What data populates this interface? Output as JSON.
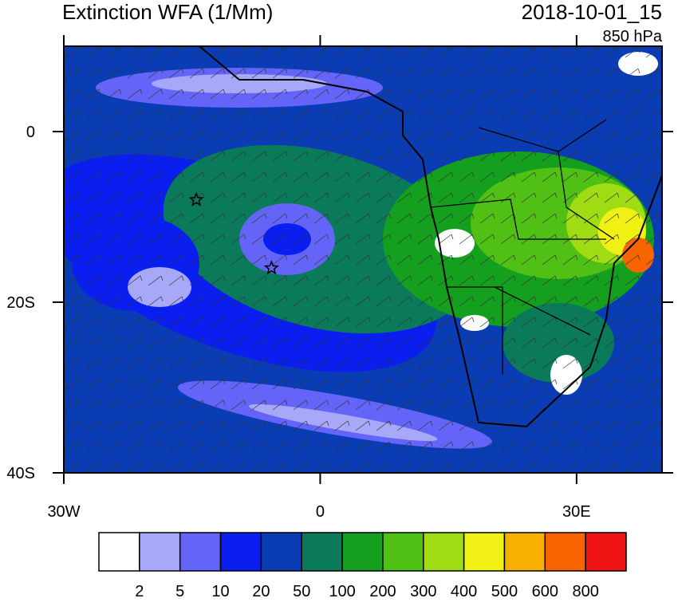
{
  "header": {
    "title": "Extinction WFA (1/Mm)",
    "datetime": "2018-10-01_15",
    "level": "850 hPa"
  },
  "map": {
    "xlim": [
      -30,
      40
    ],
    "ylim": [
      -40,
      10
    ],
    "xticks": [
      {
        "value": -30,
        "label": "30W"
      },
      0,
      {
        "value": 30,
        "label": "30E"
      }
    ],
    "yticks": [
      0,
      {
        "value": -20,
        "label": "20S"
      },
      {
        "value": -40,
        "label": "40S"
      }
    ],
    "markers": [
      {
        "lon": -14.5,
        "lat": -8
      },
      {
        "lon": -5.7,
        "lat": -16
      }
    ]
  },
  "colorbar": {
    "levels": [
      2,
      5,
      10,
      20,
      50,
      100,
      200,
      300,
      400,
      500,
      600,
      800
    ],
    "colors": [
      "#ffffff",
      "#a8a8f8",
      "#6464f8",
      "#0a1ef0",
      "#0a3cb4",
      "#0a7a5a",
      "#14a01e",
      "#50c014",
      "#a0dc14",
      "#f0f014",
      "#f8b000",
      "#f86400",
      "#f01414"
    ]
  }
}
